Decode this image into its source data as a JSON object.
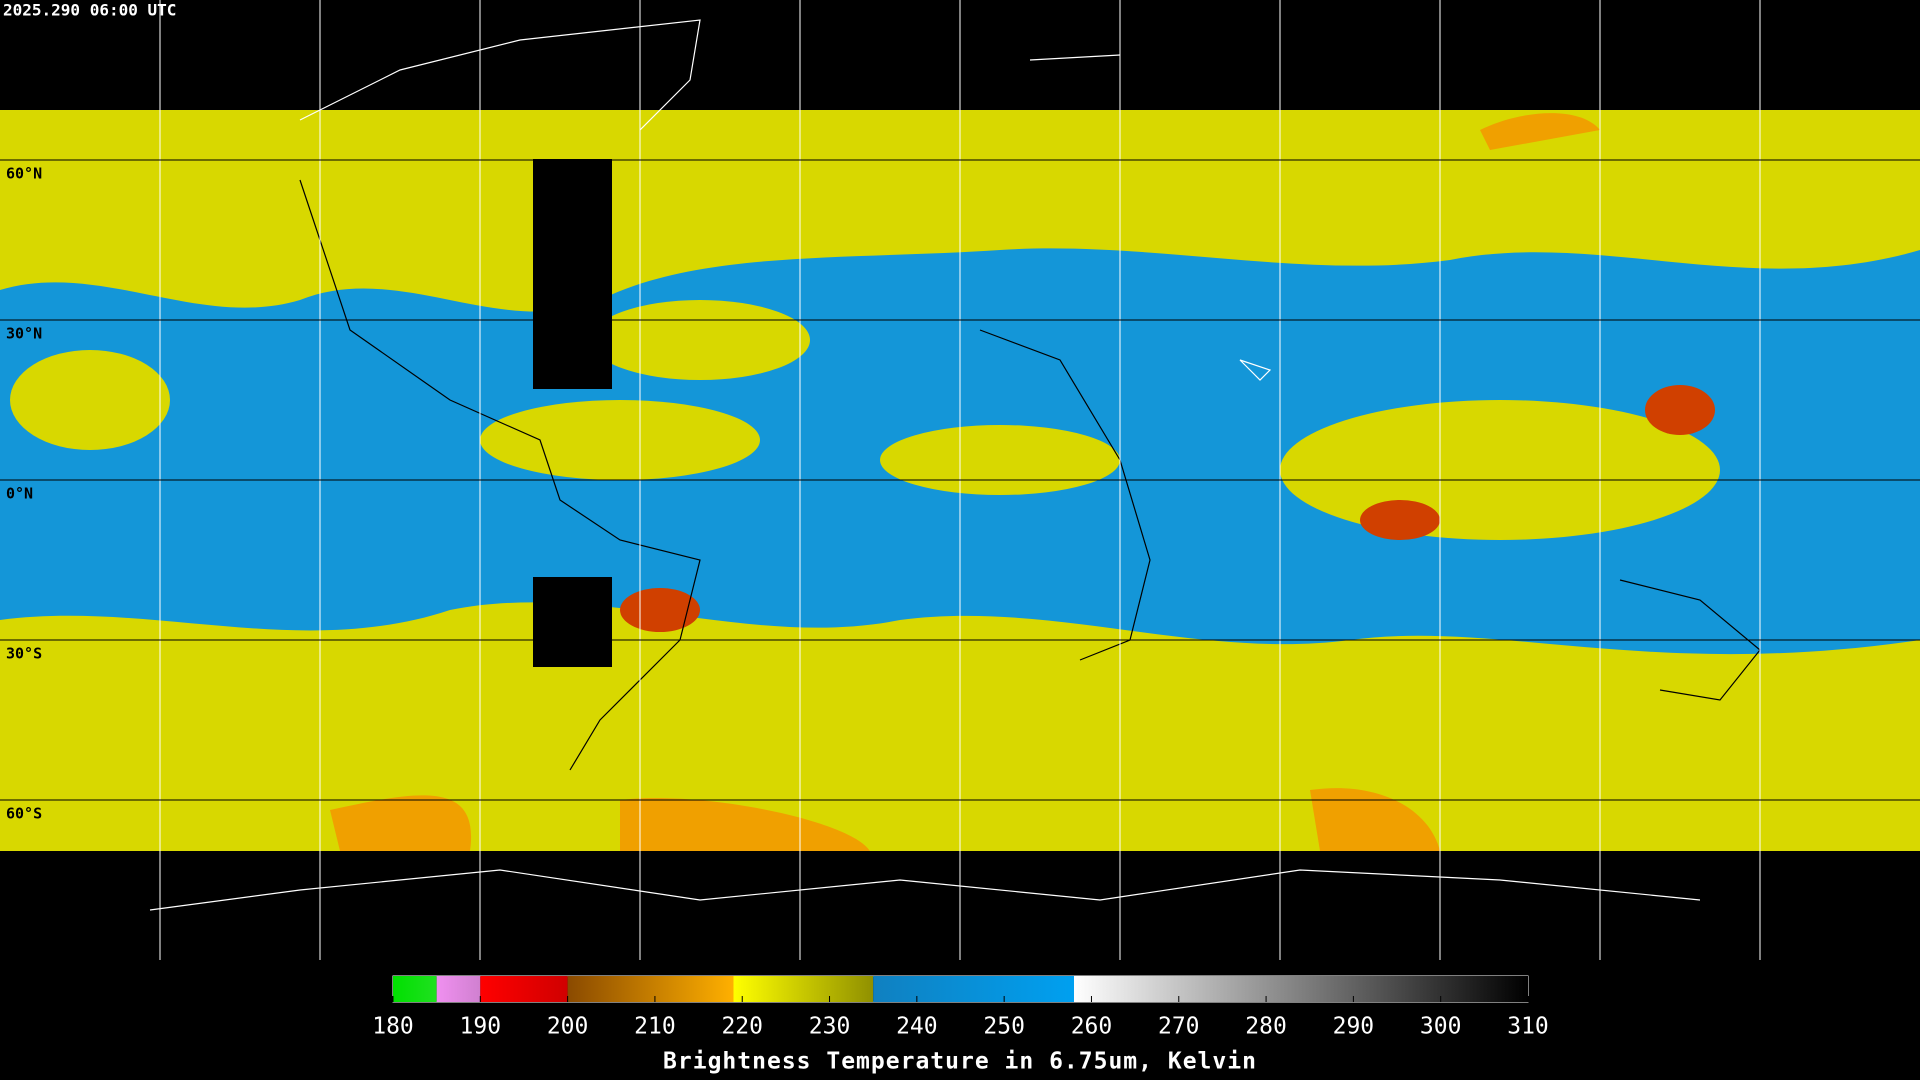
{
  "header": {
    "timestamp": "2025.290 06:00 UTC"
  },
  "map": {
    "xlim": [
      -180,
      180
    ],
    "ylim": [
      90,
      -90
    ],
    "xticks": [
      -150,
      -120,
      -90,
      -60,
      -30,
      0,
      30,
      60,
      90,
      120,
      150
    ],
    "yticks": [
      {
        "value": 60,
        "label": "60°N"
      },
      {
        "value": 30,
        "label": "30°N"
      },
      {
        "value": 0,
        "label": "0°N"
      },
      {
        "value": -30,
        "label": "30°S"
      },
      {
        "value": -60,
        "label": "60°S"
      }
    ]
  },
  "colorbar": {
    "title": "Brightness Temperature in 6.75um, Kelvin",
    "lim": [
      180,
      310
    ],
    "ticks": [
      180,
      190,
      200,
      210,
      220,
      230,
      240,
      250,
      260,
      270,
      280,
      290,
      300,
      310
    ],
    "segments": [
      {
        "from": 180,
        "to": 185,
        "colors": [
          "#00e000",
          "#20e020"
        ]
      },
      {
        "from": 185,
        "to": 190,
        "colors": [
          "#f090f0",
          "#d080d0"
        ]
      },
      {
        "from": 190,
        "to": 200,
        "colors": [
          "#ff0000",
          "#d00000"
        ]
      },
      {
        "from": 200,
        "to": 219,
        "colors": [
          "#8a4a00",
          "#ffb000"
        ]
      },
      {
        "from": 219,
        "to": 235,
        "colors": [
          "#ffff00",
          "#909000"
        ]
      },
      {
        "from": 235,
        "to": 258,
        "colors": [
          "#1080c0",
          "#00a0f0"
        ]
      },
      {
        "from": 258,
        "to": 310,
        "colors": [
          "#ffffff",
          "#000000"
        ]
      }
    ]
  }
}
